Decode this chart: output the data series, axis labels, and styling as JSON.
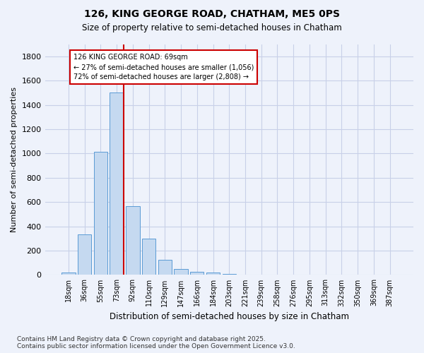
{
  "title1": "126, KING GEORGE ROAD, CHATHAM, ME5 0PS",
  "title2": "Size of property relative to semi-detached houses in Chatham",
  "xlabel": "Distribution of semi-detached houses by size in Chatham",
  "ylabel": "Number of semi-detached properties",
  "categories": [
    "18sqm",
    "36sqm",
    "55sqm",
    "73sqm",
    "92sqm",
    "110sqm",
    "129sqm",
    "147sqm",
    "166sqm",
    "184sqm",
    "203sqm",
    "221sqm",
    "239sqm",
    "258sqm",
    "276sqm",
    "295sqm",
    "313sqm",
    "332sqm",
    "350sqm",
    "369sqm",
    "387sqm"
  ],
  "values": [
    20,
    335,
    1015,
    1500,
    565,
    300,
    125,
    50,
    25,
    20,
    10,
    0,
    0,
    0,
    0,
    0,
    0,
    0,
    0,
    0,
    0
  ],
  "bar_color": "#c5d9f0",
  "bar_edge_color": "#5b9bd5",
  "vline_color": "#cc0000",
  "vline_x": 3.43,
  "annotation_title": "126 KING GEORGE ROAD: 69sqm",
  "annotation_line1": "← 27% of semi-detached houses are smaller (1,056)",
  "annotation_line2": "72% of semi-detached houses are larger (2,808) →",
  "annotation_box_color": "#cc0000",
  "ylim": [
    0,
    1900
  ],
  "yticks": [
    0,
    200,
    400,
    600,
    800,
    1000,
    1200,
    1400,
    1600,
    1800
  ],
  "footer1": "Contains HM Land Registry data © Crown copyright and database right 2025.",
  "footer2": "Contains public sector information licensed under the Open Government Licence v3.0.",
  "bg_color": "#eef2fb",
  "plot_bg_color": "#eef2fb",
  "grid_color": "#c8d0e8"
}
